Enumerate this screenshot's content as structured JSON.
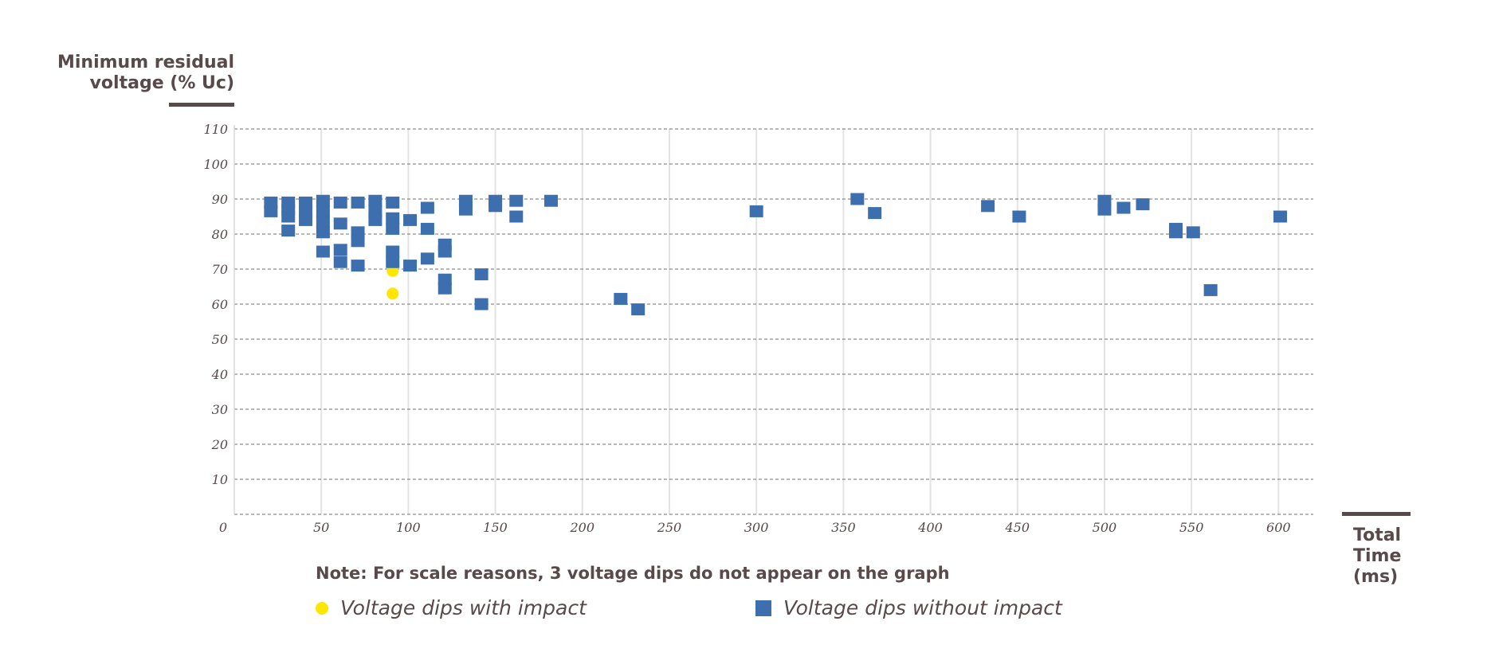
{
  "chart_data": {
    "type": "scatter",
    "y_label_lines": [
      "Minimum residual",
      "voltage (% Uc)"
    ],
    "x_label_lines": [
      "Total",
      "Time",
      "(ms)"
    ],
    "xlim": [
      0,
      620
    ],
    "ylim": [
      0,
      110
    ],
    "x_ticks": [
      0,
      50,
      100,
      150,
      200,
      250,
      300,
      350,
      400,
      450,
      500,
      550,
      600
    ],
    "y_ticks": [
      10,
      20,
      30,
      40,
      50,
      60,
      70,
      80,
      90,
      100,
      110
    ],
    "grid": true,
    "legend_position": "bottom",
    "note": "Note: For scale reasons, 3 voltage dips do not appear on the graph",
    "colors": {
      "impact": "#ffe600",
      "no_impact": "#3d6fae",
      "text": "#58494a",
      "axis": "#58494a",
      "grid": "#8c8c8c"
    },
    "series": [
      {
        "name": "Voltage dips with impact",
        "marker": "circle",
        "points": [
          [
            91,
            69.5
          ],
          [
            91,
            63
          ]
        ]
      },
      {
        "name": "Voltage dips without impact",
        "marker": "square",
        "points": [
          [
            21,
            89
          ],
          [
            21,
            86.5
          ],
          [
            31,
            89
          ],
          [
            31,
            87
          ],
          [
            31,
            85
          ],
          [
            31,
            81
          ],
          [
            41,
            89
          ],
          [
            41,
            86.5
          ],
          [
            41,
            84
          ],
          [
            51,
            89.5
          ],
          [
            51,
            86.5
          ],
          [
            51,
            83.5
          ],
          [
            51,
            80.5
          ],
          [
            51,
            75
          ],
          [
            61,
            89
          ],
          [
            61,
            83
          ],
          [
            61,
            75.5
          ],
          [
            61,
            72
          ],
          [
            71,
            89
          ],
          [
            71,
            80.5
          ],
          [
            71,
            78
          ],
          [
            71,
            71
          ],
          [
            81,
            89.5
          ],
          [
            81,
            86.5
          ],
          [
            81,
            84
          ],
          [
            91,
            89
          ],
          [
            91,
            84.5
          ],
          [
            91,
            81.5
          ],
          [
            91,
            75
          ],
          [
            91,
            72
          ],
          [
            101,
            84
          ],
          [
            101,
            71
          ],
          [
            111,
            87.5
          ],
          [
            111,
            81.5
          ],
          [
            111,
            73
          ],
          [
            121,
            77
          ],
          [
            121,
            75
          ],
          [
            121,
            67
          ],
          [
            121,
            64.5
          ],
          [
            133,
            89.5
          ],
          [
            133,
            87
          ],
          [
            142,
            68.5
          ],
          [
            142,
            60
          ],
          [
            150,
            89.5
          ],
          [
            150,
            88
          ],
          [
            162,
            89.5
          ],
          [
            162,
            85
          ],
          [
            182,
            89.5
          ],
          [
            222,
            61.5
          ],
          [
            232,
            58.5
          ],
          [
            300,
            86.5
          ],
          [
            358,
            90
          ],
          [
            368,
            86
          ],
          [
            433,
            88
          ],
          [
            451,
            85
          ],
          [
            500,
            89.5
          ],
          [
            500,
            87
          ],
          [
            511,
            87.5
          ],
          [
            522,
            88.5
          ],
          [
            541,
            81.5
          ],
          [
            541,
            80.5
          ],
          [
            551,
            80.5
          ],
          [
            561,
            64
          ],
          [
            601,
            85
          ]
        ]
      }
    ]
  }
}
